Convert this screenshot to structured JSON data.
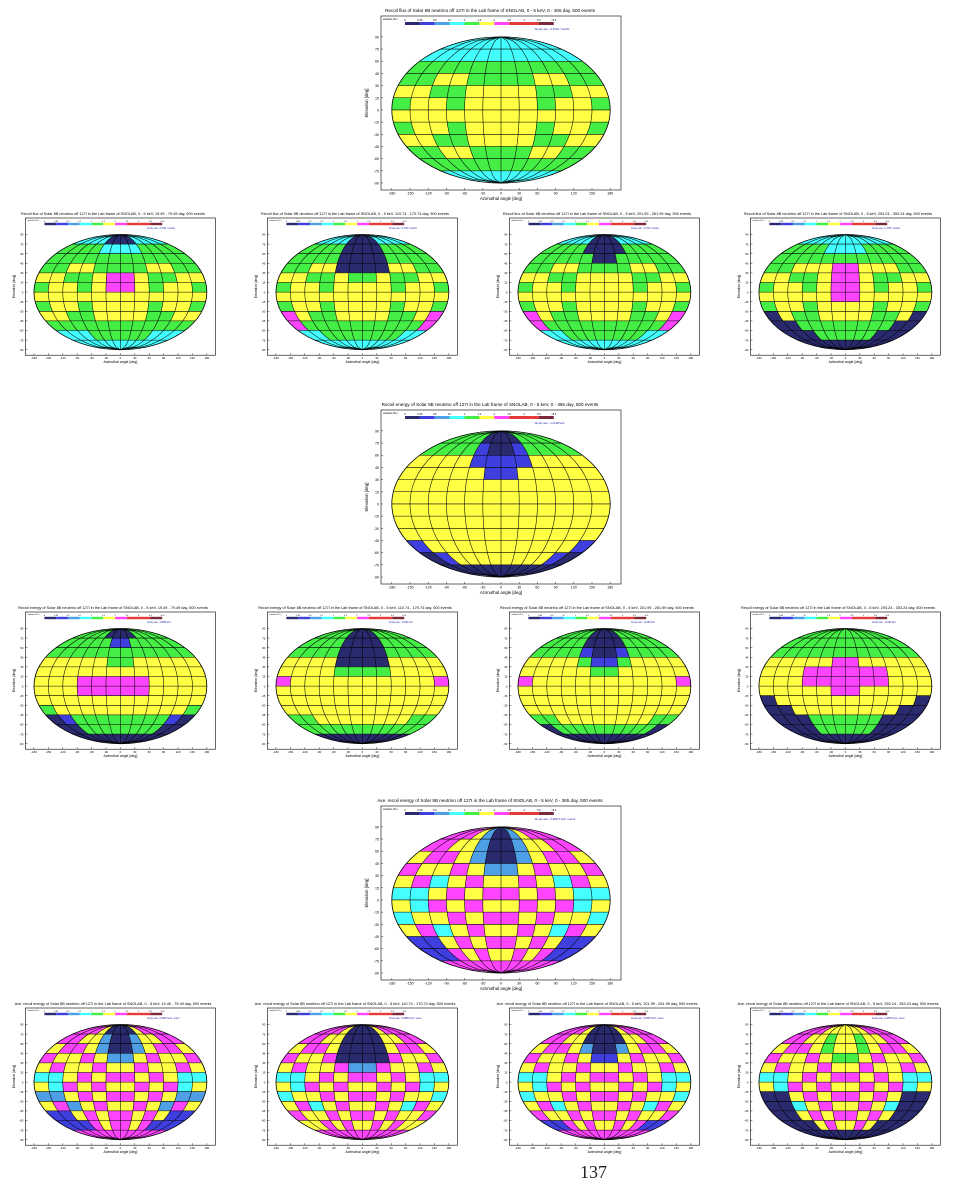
{
  "palette": {
    "navy": "#2a2a6e",
    "blue": "#3f3fe0",
    "lightblue": "#4f9fe6",
    "cyan": "#44ffff",
    "green": "#44ee44",
    "yellow": "#ffff44",
    "magenta": "#ff44ff",
    "red": "#e33a3a",
    "brown": "#7a2a3a"
  },
  "common": {
    "xlabel": "Azimuthal angle [deg]",
    "ylabel": "Elevation [deg]",
    "xticks": [
      "-180",
      "-150",
      "-120",
      "-90",
      "-60",
      "-30",
      "0",
      "30",
      "60",
      "90",
      "120",
      "150",
      "180"
    ],
    "yticks": [
      "90",
      "75",
      "60",
      "45",
      "30",
      "15",
      "0",
      "-15",
      "-30",
      "-45",
      "-60",
      "-75",
      "-90"
    ],
    "stat_label": "statistics.1D.n",
    "legend_ticks": [
      "0",
      "0.35",
      "0.5",
      "0.7",
      "1",
      "1.4",
      "2",
      "2.8",
      "4",
      "5.6",
      ">5.6"
    ]
  },
  "page_number": "137",
  "chart_data": [
    {
      "id": "flux_all",
      "type": "heatmap",
      "title": "Recoil flux of Solar 8B neutrino off 127I in the Lab frame of SNOLAB, 0 - 5 keV, 0 - 365 day, 500 events",
      "note": "All sky ave.: 0.4722 / results",
      "rows": [
        "CCCCCCCCCCCC",
        "CCCCCCCCCCCC",
        "GGGGGGGGGGGG",
        "GGYYGGGGYYGG",
        "YYGGYYYYGGYY",
        "GYYGYYYYGYYG",
        "YYYYYYYYYYYY",
        "GYYGYYYYGYYG",
        "YYGGYYYYGGYY",
        "GGYYGGGGYYGG",
        "GGGGGGGGGGGG",
        "CCCCCCCCCCCC"
      ]
    },
    {
      "id": "flux_q1",
      "type": "heatmap",
      "title": "Recoil flux of Solar 8B neutrino off 127I in the Lab frame of SNOLAB, 0 - 5 keV, 19.49 - 79.49 day, 500 events",
      "note": "All sky ave.: 0.4741 / results",
      "rows": [
        "CCCCNNNNCCCC",
        "GGGGCCCCGGGG",
        "GGGGGGGGGGGG",
        "GGYYGGGGYYGG",
        "YYGGYMMYGGYY",
        "GYYGYMMYGYYG",
        "YYYYYYYYYYYY",
        "GYYGYYYYGYYG",
        "YYGGYYYYGGYY",
        "GGGGGGGGGGGG",
        "CCCGGGGGGCCC",
        "CCCCCCCCCCCC"
      ]
    },
    {
      "id": "flux_q2",
      "type": "heatmap",
      "title": "Recoil flux of Solar 8B neutrino off 127I in the Lab frame of SNOLAB, 0 - 5 keV, 110.74 - 170.74 day, 500 events",
      "note": "All sky ave.: 0.4720 / results",
      "rows": [
        "CCCCNNNNCCCC",
        "GGGGNNNNGGGG",
        "GGGGNNNNGGGG",
        "GGYYNNNNYYGG",
        "YYGGYGGYGGYY",
        "GYYGYYYYGYYG",
        "YYYYYYYYYYYY",
        "GYYGYYYYGYYG",
        "MYGGYYYYGGYM",
        "MGGGGGGGGGGM",
        "CCGGGGGGGGCC",
        "CCCCCCCCCCCC"
      ]
    },
    {
      "id": "flux_q3",
      "type": "heatmap",
      "title": "Recoil flux of Solar 8B neutrino off 127I in the Lab frame of SNOLAB, 0 - 5 keV, 201.99 - 261.99 day, 500 events",
      "note": "All sky ave.: 0.4712 / results",
      "rows": [
        "CCCCNNNNCCCC",
        "GGGGNNNNGGGG",
        "GGGGGNNGGGGG",
        "GGYYGGGGYYGG",
        "YYGGYYYYGGYY",
        "GYYGYYYYGYYG",
        "YYYYYYYYYYYY",
        "GYYGYYYYGYYG",
        "MYGGYYYYGGYM",
        "MGGGGGGGGGGM",
        "CCGGGGGGGGCC",
        "CCCCCCCCCCCC"
      ]
    },
    {
      "id": "flux_q4",
      "type": "heatmap",
      "title": "Recoil flux of Solar 8B neutrino off 127I in the Lab frame of SNOLAB, 0 - 5 keV, 293.24 - 353.24 day, 500 events",
      "note": "All sky ave.: 0.4735 / results",
      "rows": [
        "CCCCCCCCCCCC",
        "GGGGCCCCGGGG",
        "GGGGGGGGGGGG",
        "GGYYYMMYYYGG",
        "YYGGYMMYGGYY",
        "GYYGYMMYGYYG",
        "YYYYYMMYYYYY",
        "GYYGYYYYGYYG",
        "NYGGYYYYGGYN",
        "NNGGGGGGGGNN",
        "NNNGGGGGGNNN",
        "NNNNNNNNNNNN"
      ]
    },
    {
      "id": "energy_all",
      "type": "heatmap",
      "title": "Recoil energy of Solar 8B neutrino off 127I in the Lab frame of SNOLAB, 0 - 5 keV, 0 - 365 day, 500 events",
      "note": "All sky ave.: 1.0108 keV",
      "rows": [
        "GGGGNNNNGGGG",
        "GGGGBNNBGGGG",
        "YYYYBBBBYYYY",
        "YYYYYBBYYYYY",
        "YYYYYYYYYYYY",
        "YYYYYYYYYYYY",
        "YYYYYYYYYYYY",
        "YYYYYYYYYYYY",
        "YYYYYYYYYYYY",
        "BYYYYYYYYYYB",
        "NBYYYYYYYYBN",
        "NNNNNNNNNNNN"
      ]
    },
    {
      "id": "energy_q1",
      "type": "heatmap",
      "title": "Recoil energy of Solar 8B neutrino off 127I in the Lab frame of SNOLAB, 0 - 5 keV, 19.49 - 79.49 day, 500 events",
      "note": "All sky ave.: 1.0085 keV",
      "rows": [
        "GGGGNNNNGGGG",
        "GGGGGBBGGGGG",
        "GGGGGGGGGGGG",
        "YYYYYGGYYYYY",
        "YYYYYYYYYYYY",
        "YYYMMMMMYYYY",
        "YYYMMMMMYYYY",
        "YYYYYYYYYYYY",
        "GYYYYYYYYYYG",
        "NBGGGGGGGGBN",
        "NNGGGGGGGGNN",
        "NNNNNNNNNNNN"
      ]
    },
    {
      "id": "energy_q2",
      "type": "heatmap",
      "title": "Recoil energy of Solar 8B neutrino off 127I in the Lab frame of SNOLAB, 0 - 5 keV, 110.74 - 170.74 day, 500 events",
      "note": "All sky ave.: 1.0187 keV",
      "rows": [
        "GGGGNNNNGGGG",
        "GGGGNNNNGGGG",
        "GGGGNNNNGGGG",
        "YYYYNNNNYYYY",
        "YYYYGGGGYYYY",
        "MYYYYYYYYYYM",
        "YYYYYYYYYYYY",
        "YYYYYYYYYYYY",
        "YYYYYYYYYYYY",
        "GGYYYYYYYYGG",
        "GGGGGGGGGGGG",
        "NNNNNNNNNNNN"
      ]
    },
    {
      "id": "energy_q3",
      "type": "heatmap",
      "title": "Recoil energy of Solar 8B neutrino off 127I in the Lab frame of SNOLAB, 0 - 5 keV, 201.99 - 261.99 day, 500 events",
      "note": "All sky ave.: 1.0163 keV",
      "rows": [
        "GGGGNNNNGGGG",
        "GGGGNNNNGGGG",
        "GGGGBNNBGGGG",
        "YYYYGBBGYYYY",
        "YYYYYGGYYYYY",
        "MYYYYYYYYYYM",
        "YYYYYYYYYYYY",
        "YYYYYYYYYYYY",
        "YYYYYYYYYYYY",
        "GGYYYYYYYYGG",
        "NGGGGGGGGGGN",
        "NNNNNNNNNNNN"
      ]
    },
    {
      "id": "energy_q4",
      "type": "heatmap",
      "title": "Recoil energy of Solar 8B neutrino off 127I in the Lab frame of SNOLAB, 0 - 5 keV, 293.24 - 353.24 day, 500 events",
      "note": "All sky ave.: 1.0192 keV",
      "rows": [
        "GGGGGGGGGGGG",
        "GGGGGGGGGGGG",
        "GGGGGGGGGGGG",
        "YYYYYMMYYYYY",
        "YYYMMMMMMYYY",
        "YYYMMMMMMYYY",
        "YYYYYMMYYYYY",
        "NYYYYYYYYYYN",
        "NNYYYYYYYYNN",
        "NNNGGGGGGNNN",
        "NNNGGGGGGNNN",
        "NNNNNNNNNNNN"
      ]
    },
    {
      "id": "ave_all",
      "type": "heatmap",
      "title": "Ave. recoil energy of Solar 8B neutrino off 127I in the Lab frame of SNOLAB, 0 - 5 keV, 0 - 365 day, 500 events",
      "note": "All sky ave.: 0.28677 keV / event",
      "rows": [
        "MMMYLNNLYMMM",
        "MMYYLNNLYYMM",
        "YMMYLNNLYMMY",
        "MYYMYLLYMYYM",
        "YMCYMYYMYCMY",
        "CCYMYMMYMYCC",
        "YCMYMYYMYMCY",
        "CYYMYMMYMYYC",
        "YMCYMYYMYCMY",
        "BBYMYMMYMYBB",
        "BBMYMYYMYMBB",
        "MMMMMMMMMMMM"
      ]
    },
    {
      "id": "ave_q1",
      "type": "heatmap",
      "title": "Ave. recoil energy of Solar 8B neutrino off 127I in the Lab frame of SNOLAB, 0 - 5 keV, 19.49 - 79.49 day, 500 events",
      "note": "All sky ave.: 0.28573 keV / event",
      "rows": [
        "MMMYNNNNYMMM",
        "MMYYLNNLYYMM",
        "YMMYLNNLYMMY",
        "MYYMYLLYMYYM",
        "YMYYMYYMYYMY",
        "CCYMYMMYMYCC",
        "YCMYMYYMYMCY",
        "LLYMYMMYMYLL",
        "YMLYMYYMYLMY",
        "BBYMYMMYMYBB",
        "BBBMYMMYMBBB",
        "MMMMMMMMMMMM"
      ]
    },
    {
      "id": "ave_q2",
      "type": "heatmap",
      "title": "Ave. recoil energy of Solar 8B neutrino off 127I in the Lab frame of SNOLAB, 0 - 5 keV, 110.74 - 170.74 day, 500 events",
      "note": "All sky ave.: 0.28881 keV / event",
      "rows": [
        "MMMYNNNNYMMM",
        "MMYYNNNNYYMM",
        "YMMYNNNNYMMY",
        "MYYMNNNNMYYM",
        "YMYYMLLMYYMY",
        "CCYMYMMYMYCC",
        "YCMYMYYMYMCY",
        "CYYMYMMYMYYC",
        "YMCYMYYMYCMY",
        "MYYMYMMYMYYM",
        "YYMYMYYMYMYY",
        "MMMMMMMMMMMM"
      ]
    },
    {
      "id": "ave_q3",
      "type": "heatmap",
      "title": "Ave. recoil energy of Solar 8B neutrino off 127I in the Lab frame of SNOLAB, 0 - 5 keV, 201.99 - 261.99 day, 500 events",
      "note": "All sky ave.: 0.28670 keV / event",
      "rows": [
        "MMMYNNNNYMMM",
        "MMYYNNNNYYMM",
        "YMMYLNNLYMMY",
        "MYYMYBBYMYYM",
        "YMYYMYYMYYMY",
        "CCYMYMMYMYCC",
        "YCMYMYYMYMCY",
        "CYYMYMMYMYYC",
        "YMCYMYYMYCMY",
        "MYYMYMMYMYYM",
        "BBMYMYYMYMBB",
        "MMMMMMMMMMMM"
      ]
    },
    {
      "id": "ave_q4",
      "type": "heatmap",
      "title": "Ave. recoil energy of Solar 8B neutrino off 127I in the Lab frame of SNOLAB, 0 - 5 keV, 293.24 - 353.24 day, 500 events",
      "note": "All sky ave.: 0.28670 keV / event",
      "rows": [
        "MMMYYYYYYMMM",
        "MMYYGYYGYYMM",
        "YMMYGYYGYMMY",
        "MYYMYGGYMYYM",
        "YMYYMYYMYYMY",
        "CCYMYMMYMYCC",
        "YCMYMYYMYMCY",
        "NNYMYMMYMYNN",
        "NNCYMYYMYCNN",
        "NNYMYMMYMYNN",
        "NNNYMYYMYNNN",
        "NNNNNNNNNNNN"
      ]
    }
  ]
}
